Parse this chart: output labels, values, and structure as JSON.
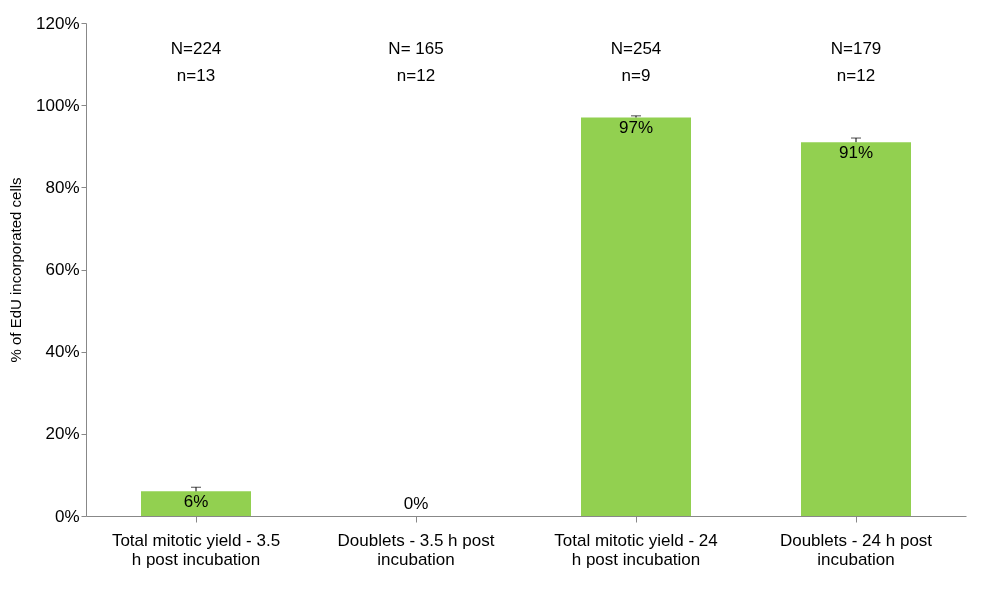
{
  "chart_data": {
    "type": "bar",
    "ylabel": "% of EdU incorporated cells",
    "categories": [
      "Total mitotic yield - 3.5 h post incubation",
      "Doublets - 3.5 h post incubation",
      "Total mitotic yield - 24 h post incubation",
      "Doublets - 24 h post incubation"
    ],
    "values": [
      6,
      0,
      97,
      91
    ],
    "value_labels": [
      "6%",
      "0%",
      "97%",
      "91%"
    ],
    "errors": [
      [
        6,
        7
      ],
      null,
      [
        97,
        97.4
      ],
      [
        91,
        92
      ]
    ],
    "color": "#92d050",
    "ylim": [
      0,
      120
    ],
    "yticks": [
      {
        "value": 0,
        "label": "0%"
      },
      {
        "value": 20,
        "label": "20%"
      },
      {
        "value": 40,
        "label": "40%"
      },
      {
        "value": 60,
        "label": "60%"
      },
      {
        "value": 80,
        "label": "80%"
      },
      {
        "value": 100,
        "label": "100%"
      },
      {
        "value": 120,
        "label": "120%"
      }
    ],
    "annotations": [
      "N=224",
      "n=13",
      "N= 165",
      "n=12",
      "N=254",
      "n=9",
      "N=179",
      "n=12"
    ],
    "grid": false
  }
}
